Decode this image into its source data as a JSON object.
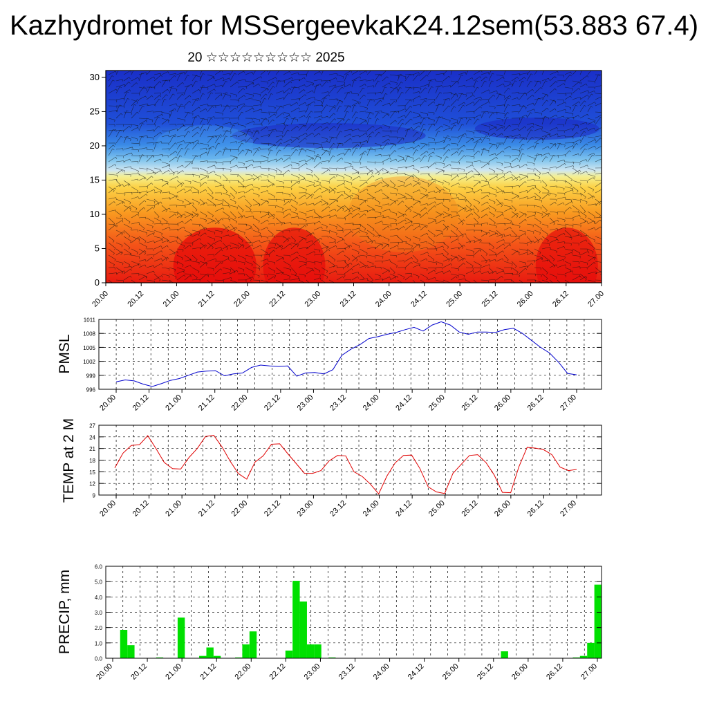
{
  "header": {
    "title": "Kazhydromet for MSSergeevkaK24.12sem(53.883 67.4)",
    "subtitle": "20 ☆☆☆☆☆☆☆☆☆ 2025"
  },
  "colors": {
    "pressure_line": "#0000cc",
    "temperature_line": "#e00000",
    "precip_bar": "#00e000",
    "cross_section_low_altitude": "#ee2211",
    "cross_section_high_altitude": "#1a2fd0"
  },
  "chart_data": [
    {
      "type": "heatmap",
      "title": "",
      "xlabel": "",
      "ylabel": "",
      "x_tick_labels": [
        "20.00",
        "20.12",
        "21.00",
        "21.12",
        "22.00",
        "22.12",
        "23.00",
        "23.12",
        "24.00",
        "24.12",
        "25.00",
        "25.12",
        "26.00",
        "26.12",
        "27.00"
      ],
      "ylim": [
        0,
        31
      ],
      "y_ticks": [
        0,
        5,
        10,
        15,
        20,
        25,
        30
      ],
      "description_of_field": "temperature-like color fill (red low levels, blue upper levels) with wind barbs",
      "colormap_range": [
        "red",
        "orange",
        "yellow",
        "white",
        "light blue",
        "dark blue"
      ]
    },
    {
      "type": "line",
      "ylabel": "PMSL",
      "ylim": [
        996,
        1011
      ],
      "y_ticks": [
        996,
        999,
        1002,
        1005,
        1008,
        1011
      ],
      "x_tick_labels": [
        "20.00",
        "20.12",
        "21.00",
        "21.12",
        "22.00",
        "22.12",
        "23.00",
        "23.12",
        "24.00",
        "24.12",
        "25.00",
        "25.12",
        "26.00",
        "26.12",
        "27.00"
      ],
      "grid": true,
      "series": [
        {
          "values": [
            997.6,
            998.0,
            997.8,
            997.1,
            996.6,
            997.2,
            997.9,
            998.3,
            999.0,
            999.7,
            999.9,
            1000.0,
            998.9,
            999.3,
            999.5,
            1000.7,
            1001.2,
            1001.0,
            1000.9,
            1001.0,
            998.8,
            999.5,
            999.6,
            999.3,
            1000.2,
            1003.3,
            1004.6,
            1005.6,
            1006.9,
            1007.3,
            1007.8,
            1008.2,
            1008.8,
            1009.3,
            1008.5,
            1009.8,
            1010.5,
            1009.8,
            1008.3,
            1007.8,
            1008.3,
            1008.3,
            1008.2,
            1008.8,
            1009.1,
            1008.0,
            1006.5,
            1005.0,
            1003.8,
            1001.8,
            999.4,
            999.1
          ]
        }
      ]
    },
    {
      "type": "line",
      "ylabel": "TEMP at 2 M",
      "ylim": [
        9,
        27
      ],
      "y_ticks": [
        9,
        12,
        15,
        18,
        21,
        24,
        27
      ],
      "x_tick_labels": [
        "20.00",
        "20.12",
        "21.00",
        "21.12",
        "22.00",
        "22.12",
        "23.00",
        "23.12",
        "24.00",
        "24.12",
        "25.00",
        "25.12",
        "26.00",
        "26.12",
        "27.00"
      ],
      "grid": true,
      "series": [
        {
          "values": [
            16.0,
            19.8,
            21.8,
            22.0,
            24.3,
            21.0,
            17.4,
            15.8,
            15.7,
            18.7,
            21.0,
            24.1,
            24.4,
            21.4,
            17.7,
            14.5,
            13.1,
            17.5,
            19.1,
            22.1,
            22.2,
            19.6,
            17.1,
            14.6,
            14.6,
            15.3,
            17.8,
            19.2,
            19.1,
            15.0,
            13.8,
            11.8,
            9.3,
            13.9,
            17.3,
            19.2,
            19.3,
            15.8,
            11.1,
            9.8,
            9.4,
            14.6,
            16.9,
            19.2,
            19.4,
            17.4,
            14.2,
            9.7,
            9.6,
            16.3,
            21.3,
            21.1,
            20.7,
            19.4,
            16.2,
            15.3,
            15.6
          ]
        }
      ]
    },
    {
      "type": "bar",
      "ylabel": "PRECIP, mm",
      "ylim": [
        0,
        6
      ],
      "y_ticks": [
        "0.0",
        "1.0",
        "2.0",
        "3.0",
        "4.0",
        "5.0",
        "6.0"
      ],
      "x_tick_labels": [
        "20.00",
        "20.12",
        "21.00",
        "21.12",
        "22.00",
        "22.12",
        "23.00",
        "23.12",
        "24.00",
        "24.12",
        "25.00",
        "25.12",
        "26.00",
        "26.12",
        "27.00"
      ],
      "grid": true,
      "series": [
        {
          "values": [
            0,
            0,
            1.85,
            0.85,
            0,
            0,
            0,
            0.05,
            0,
            0,
            2.65,
            0,
            0,
            0.15,
            0.7,
            0.15,
            0,
            0,
            0.05,
            0.9,
            1.75,
            0,
            0,
            0,
            0,
            0.5,
            5.05,
            3.7,
            0.9,
            0.9,
            0,
            0.05,
            0,
            0,
            0,
            0,
            0,
            0,
            0,
            0,
            0,
            0,
            0,
            0,
            0,
            0,
            0,
            0,
            0,
            0,
            0,
            0,
            0,
            0,
            0,
            0.45,
            0,
            0,
            0,
            0,
            0,
            0,
            0,
            0,
            0.02,
            0.05,
            0.15,
            1.0,
            4.8
          ]
        }
      ]
    }
  ]
}
